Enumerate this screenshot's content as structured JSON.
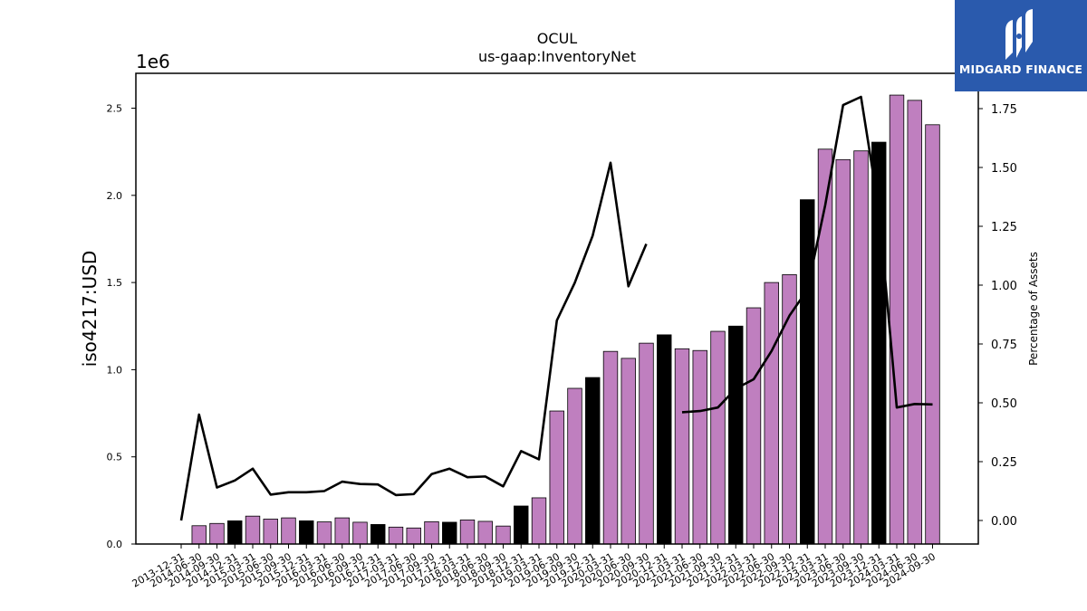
{
  "chart_data": {
    "type": "bar",
    "title": "OCUL",
    "subtitle": "us-gaap:InventoryNet",
    "ylabel": "iso4217:USD",
    "y_offset_label": "1e6",
    "y2label": "Percentage of Assets",
    "ylim": [
      0,
      2700000.0
    ],
    "y2lim": [
      -0.1,
      1.9
    ],
    "y_ticks": [
      0.0,
      0.5,
      1.0,
      1.5,
      2.0,
      2.5
    ],
    "y_tick_labels": [
      "0.0",
      "0.5",
      "1.0",
      "1.5",
      "2.0",
      "2.5"
    ],
    "y2_ticks": [
      0.0,
      0.25,
      0.5,
      0.75,
      1.0,
      1.25,
      1.5,
      1.75
    ],
    "y2_tick_labels": [
      "0.00",
      "0.25",
      "0.50",
      "0.75",
      "1.00",
      "1.25",
      "1.50",
      "1.75"
    ],
    "categories": [
      "2013-12-31",
      "2014-06-30",
      "2014-09-30",
      "2014-12-31",
      "2015-03-31",
      "2015-06-30",
      "2015-09-30",
      "2015-12-31",
      "2016-03-31",
      "2016-06-30",
      "2016-09-30",
      "2016-12-31",
      "2017-03-31",
      "2017-06-30",
      "2017-09-30",
      "2017-12-31",
      "2018-03-31",
      "2018-06-30",
      "2018-09-30",
      "2018-12-31",
      "2019-03-31",
      "2019-06-30",
      "2019-09-30",
      "2019-12-31",
      "2020-03-31",
      "2020-06-30",
      "2020-09-30",
      "2020-12-31",
      "2021-03-31",
      "2021-06-30",
      "2021-09-30",
      "2021-12-31",
      "2022-03-31",
      "2022-06-30",
      "2022-09-30",
      "2022-12-31",
      "2023-03-31",
      "2023-06-30",
      "2023-09-30",
      "2023-12-31",
      "2024-03-31",
      "2024-06-30",
      "2024-09-30"
    ],
    "bar_values": [
      null,
      105000,
      118000,
      133000,
      160000,
      143000,
      150000,
      133000,
      127000,
      150000,
      125000,
      112000,
      97000,
      92000,
      128000,
      125000,
      138000,
      130000,
      103000,
      218000,
      265000,
      763000,
      893000,
      955000,
      1105000,
      1065000,
      1152000,
      1200000,
      1120000,
      1110000,
      1220000,
      1250000,
      1355000,
      1500000,
      1545000,
      1975000,
      2265000,
      2205000,
      2255000,
      2305000,
      2575000,
      2545000,
      2405000
    ],
    "bar_is_annual": [
      false,
      false,
      false,
      true,
      false,
      false,
      false,
      true,
      false,
      false,
      false,
      true,
      false,
      false,
      false,
      true,
      false,
      false,
      false,
      true,
      false,
      false,
      false,
      true,
      false,
      false,
      false,
      true,
      false,
      false,
      false,
      true,
      false,
      false,
      false,
      true,
      false,
      false,
      false,
      true,
      false,
      false,
      false
    ],
    "line_values": [
      0.0,
      0.45,
      0.14,
      0.17,
      0.22,
      0.11,
      0.12,
      0.12,
      0.125,
      0.165,
      0.155,
      0.153,
      0.108,
      0.112,
      0.197,
      0.22,
      0.184,
      0.187,
      0.145,
      0.295,
      0.26,
      0.85,
      1.01,
      1.21,
      1.52,
      0.995,
      1.175,
      null,
      0.46,
      0.465,
      0.48,
      0.56,
      0.6,
      0.72,
      0.87,
      0.98,
      1.34,
      1.765,
      1.8,
      1.32,
      0.48,
      0.495,
      0.493
    ],
    "colors": {
      "quarterly": "#bf7fbf",
      "annual": "#000000",
      "line": "#000000"
    },
    "grid": false,
    "legend": "none"
  },
  "logo": {
    "text": "MIDGARD FINANCE"
  }
}
